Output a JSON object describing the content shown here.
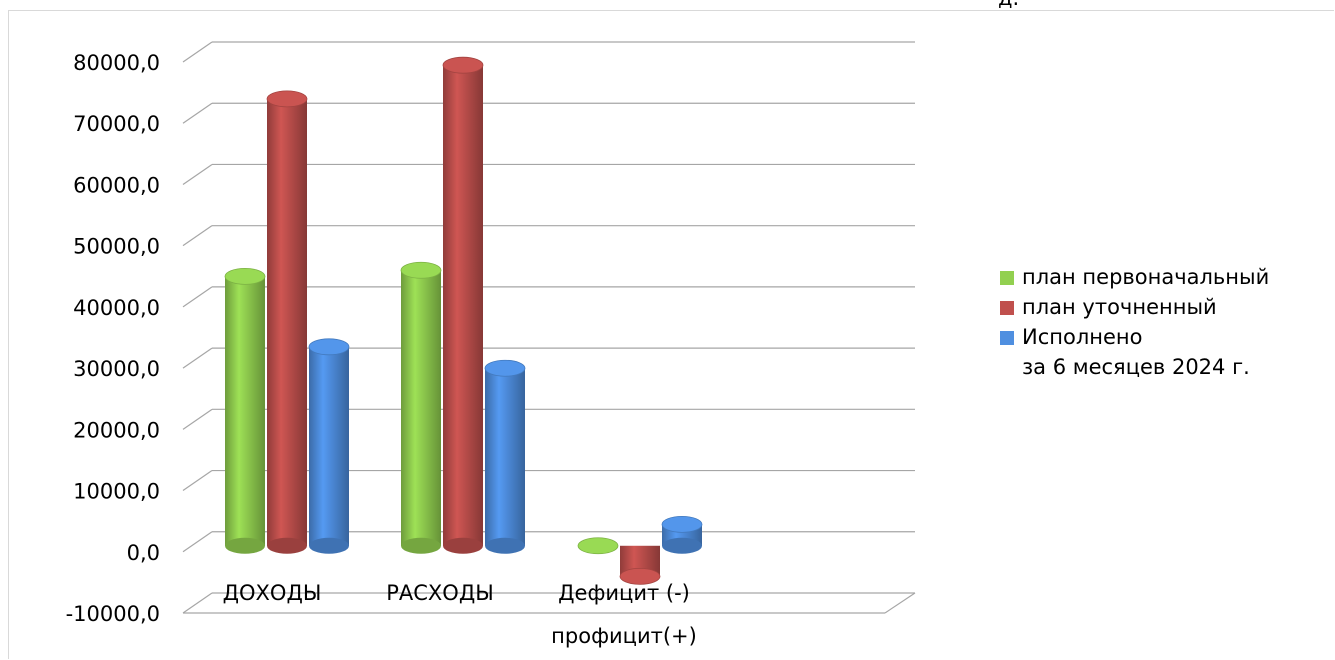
{
  "chart_data": {
    "type": "bar",
    "title": "",
    "xlabel": "",
    "ylabel": "",
    "ylim": [
      -10000,
      80000
    ],
    "y_ticks": [
      "80000,0",
      "70000,0",
      "60000,0",
      "50000,0",
      "40000,0",
      "30000,0",
      "20000,0",
      "10000,0",
      "0,0",
      "-10000,0"
    ],
    "categories": [
      {
        "line1": "ДОХОДЫ",
        "line2": ""
      },
      {
        "line1": "РАСХОДЫ",
        "line2": ""
      },
      {
        "line1": "Дефицит (-)",
        "line2": "профицит(+)"
      }
    ],
    "series": [
      {
        "name": "план первоначальный",
        "color": "#92d050",
        "values": [
          44000,
          45000,
          0
        ]
      },
      {
        "name": "план уточненный",
        "color": "#c0504d",
        "values": [
          73000,
          78500,
          -5000
        ]
      },
      {
        "name": "Исполнено за 6 месяцев 2024 г.",
        "name_line1": "Исполнено",
        "name_line2": "за 6 месяцев 2024 г.",
        "color": "#4f8fe0",
        "values": [
          32500,
          29000,
          3500
        ]
      }
    ],
    "grid": true,
    "legend_position": "right",
    "style": "3d-cylinder"
  },
  "unit_fragment": "д."
}
